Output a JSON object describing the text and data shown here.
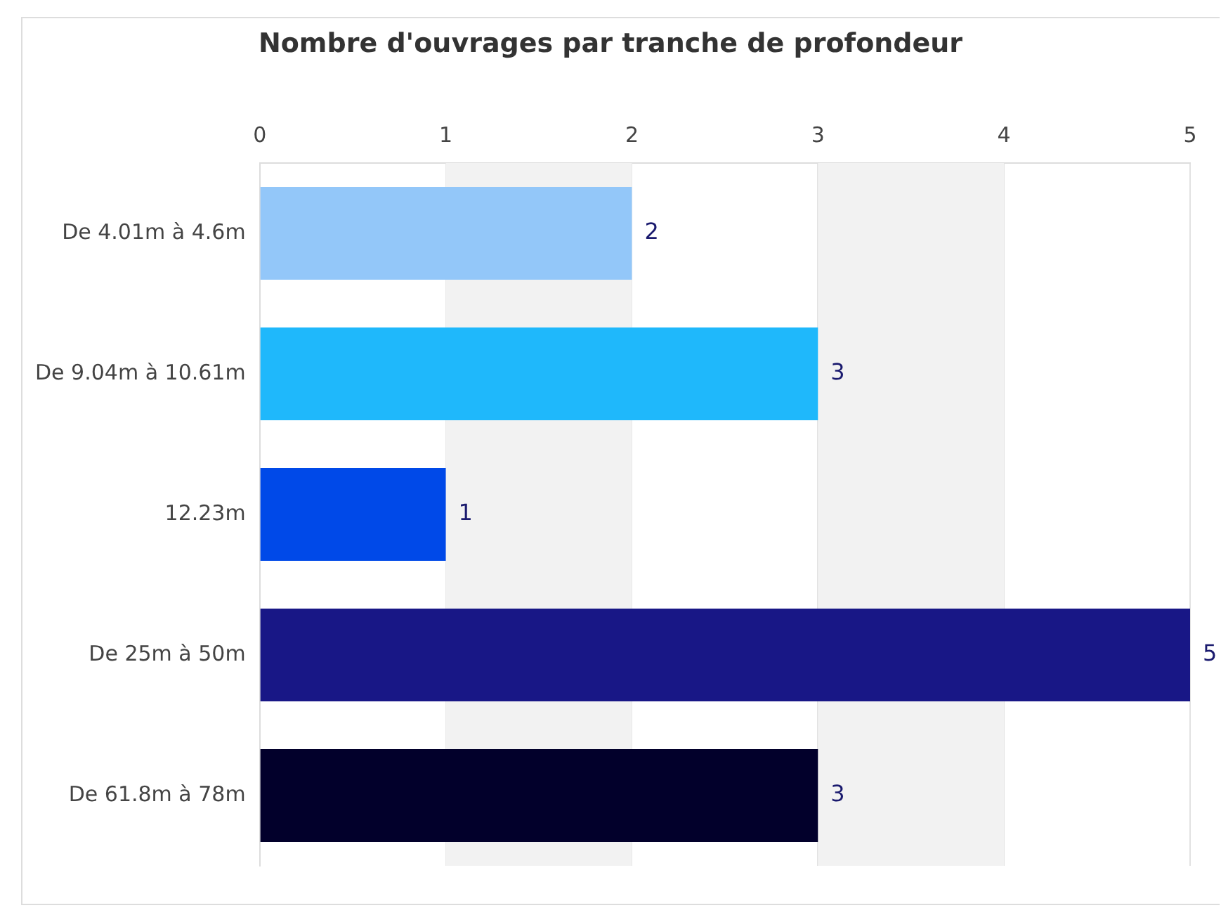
{
  "chart_data": {
    "type": "bar",
    "title": "Nombre d'ouvrages par tranche de profondeur",
    "orientation": "horizontal",
    "categories": [
      "De 4.01m à 4.6m",
      "De 9.04m à 10.61m",
      "12.23m",
      "De 25m à 50m",
      "De 61.8m à 78m"
    ],
    "values": [
      2,
      3,
      1,
      5,
      3
    ],
    "colors": [
      "#93c7f9",
      "#1fb8fb",
      "#0049e8",
      "#181786",
      "#02002b"
    ],
    "xlim": [
      0,
      5
    ],
    "xticks": [
      0,
      1,
      2,
      3,
      4,
      5
    ],
    "grid": "x",
    "data_labels": true
  }
}
